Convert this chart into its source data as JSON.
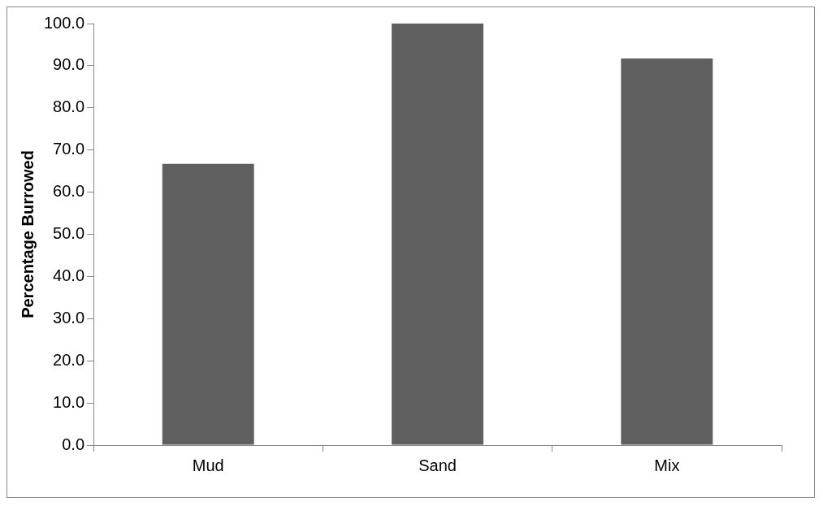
{
  "chart_data": {
    "type": "bar",
    "ylabel": "Percentage Burrowed",
    "categories": [
      "Mud",
      "Sand",
      "Mix"
    ],
    "values": [
      66.7,
      100.0,
      91.7
    ],
    "color": "#5f5f5f",
    "ylim": [
      0,
      100
    ],
    "yticks": [
      {
        "value": 0,
        "label": "0.0"
      },
      {
        "value": 10,
        "label": "10.0"
      },
      {
        "value": 20,
        "label": "20.0"
      },
      {
        "value": 30,
        "label": "30.0"
      },
      {
        "value": 40,
        "label": "40.0"
      },
      {
        "value": 50,
        "label": "50.0"
      },
      {
        "value": 60,
        "label": "60.0"
      },
      {
        "value": 70,
        "label": "70.0"
      },
      {
        "value": 80,
        "label": "80.0"
      },
      {
        "value": 90,
        "label": "90.0"
      },
      {
        "value": 100,
        "label": "100.0"
      }
    ],
    "grid": false
  }
}
